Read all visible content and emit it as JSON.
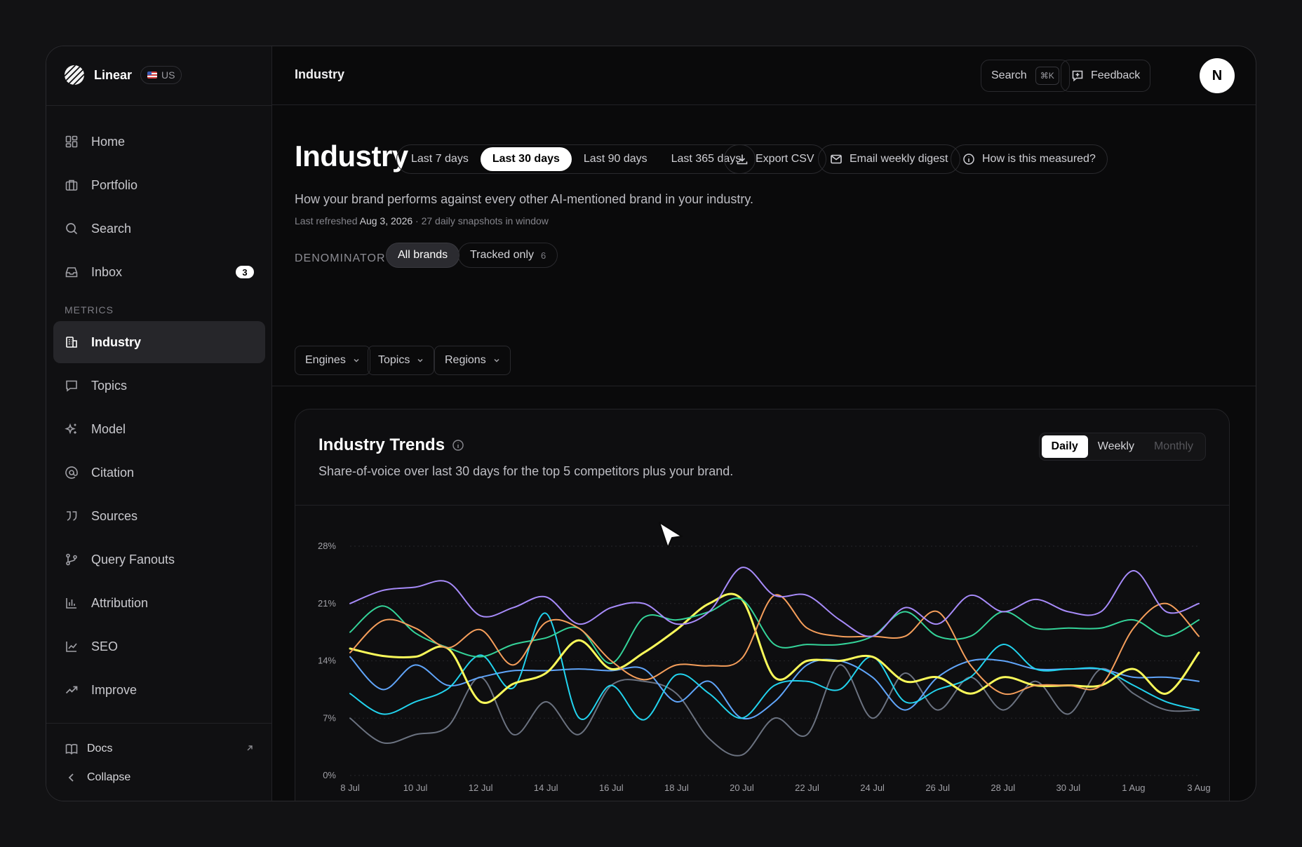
{
  "app": {
    "name": "Linear",
    "region": "US"
  },
  "sidebar": {
    "items": [
      {
        "label": "Home",
        "icon": "home-icon"
      },
      {
        "label": "Portfolio",
        "icon": "briefcase-icon"
      },
      {
        "label": "Search",
        "icon": "search-icon"
      },
      {
        "label": "Inbox",
        "icon": "inbox-icon",
        "badge": "3"
      }
    ],
    "section_label": "METRICS",
    "metrics": [
      {
        "label": "Industry",
        "icon": "building-icon",
        "active": true
      },
      {
        "label": "Topics",
        "icon": "chat-icon"
      },
      {
        "label": "Model",
        "icon": "sparkle-icon"
      },
      {
        "label": "Citation",
        "icon": "at-icon"
      },
      {
        "label": "Sources",
        "icon": "quote-icon"
      },
      {
        "label": "Query Fanouts",
        "icon": "branch-icon"
      },
      {
        "label": "Attribution",
        "icon": "bar-chart-icon"
      },
      {
        "label": "SEO",
        "icon": "line-chart-icon"
      },
      {
        "label": "Improve",
        "icon": "trending-up-icon"
      }
    ],
    "footer": {
      "docs": "Docs",
      "collapse": "Collapse"
    }
  },
  "topbar": {
    "breadcrumb": "Industry",
    "search_label": "Search",
    "search_shortcut": "⌘K",
    "feedback_label": "Feedback",
    "avatar_initial": "N"
  },
  "header": {
    "title": "Industry",
    "ranges": [
      "Last 7 days",
      "Last 30 days",
      "Last 90 days",
      "Last 365 days"
    ],
    "selected_range": "Last 30 days",
    "export_label": "Export CSV",
    "digest_label": "Email weekly digest",
    "measured_label": "How is this measured?",
    "subtitle": "How your brand performs against every other AI-mentioned brand in your industry.",
    "refreshed_prefix": "Last refreshed",
    "refreshed_date": "Aug 3, 2026",
    "snapshots": "· 27 daily snapshots in window"
  },
  "denominator": {
    "label": "DENOMINATOR",
    "all_brands": "All brands",
    "tracked_only": "Tracked only",
    "tracked_count": "6"
  },
  "filters": {
    "engines": "Engines",
    "topics": "Topics",
    "regions": "Regions"
  },
  "card": {
    "title": "Industry Trends",
    "subtitle": "Share-of-voice over last 30 days for the top 5 competitors plus your brand.",
    "granularity": [
      "Daily",
      "Weekly",
      "Monthly"
    ],
    "selected_granularity": "Daily"
  },
  "chart_data": {
    "type": "line",
    "x": [
      "8 Jul",
      "9 Jul",
      "10 Jul",
      "11 Jul",
      "12 Jul",
      "13 Jul",
      "14 Jul",
      "15 Jul",
      "16 Jul",
      "17 Jul",
      "18 Jul",
      "19 Jul",
      "20 Jul",
      "21 Jul",
      "22 Jul",
      "23 Jul",
      "24 Jul",
      "25 Jul",
      "26 Jul",
      "27 Jul",
      "28 Jul",
      "29 Jul",
      "30 Jul",
      "31 Jul",
      "1 Aug",
      "2 Aug",
      "3 Aug"
    ],
    "x_tick_labels": [
      "8 Jul",
      "10 Jul",
      "12 Jul",
      "14 Jul",
      "16 Jul",
      "18 Jul",
      "20 Jul",
      "22 Jul",
      "24 Jul",
      "26 Jul",
      "28 Jul",
      "30 Jul",
      "1 Aug",
      "3 Aug"
    ],
    "y_ticks": [
      "0%",
      "7%",
      "14%",
      "21%",
      "28%"
    ],
    "ylim": [
      0,
      28
    ],
    "grid": true,
    "series": [
      {
        "color": "#a78bfa",
        "values": [
          21,
          22.6,
          23,
          23.6,
          19.5,
          20.5,
          21.8,
          18.5,
          20.5,
          21,
          18.5,
          20,
          25.4,
          22,
          22,
          19,
          17,
          20.5,
          18.5,
          22,
          20,
          21.5,
          20,
          20,
          25,
          20,
          21
        ]
      },
      {
        "color": "#f59e5b",
        "values": [
          15,
          18.9,
          18,
          15.6,
          17.8,
          13.5,
          18.7,
          18,
          14,
          11.7,
          13.5,
          13.4,
          14.3,
          22,
          18,
          17,
          17,
          17,
          20,
          13.5,
          10,
          11,
          11,
          11,
          18,
          21,
          17
        ]
      },
      {
        "color": "#34d399",
        "values": [
          17.5,
          20.7,
          17.4,
          15.6,
          14.5,
          16,
          16.8,
          18,
          13.7,
          19.3,
          19,
          20,
          21.5,
          16,
          16,
          16,
          17,
          20,
          17,
          17,
          20,
          18,
          18,
          18,
          19,
          17,
          19
        ]
      },
      {
        "color": "#fafa5a",
        "values": [
          15.5,
          14.6,
          14.5,
          15.5,
          9,
          11.2,
          12.5,
          16.5,
          13,
          15,
          17.8,
          21,
          21.5,
          12,
          14,
          14,
          14.5,
          11.5,
          12,
          10,
          12,
          11,
          11,
          11,
          13,
          10,
          15
        ]
      },
      {
        "color": "#22d3ee",
        "values": [
          10,
          7.5,
          9,
          10.6,
          14.7,
          10.7,
          19.8,
          7.1,
          11,
          6.8,
          12.3,
          10,
          7,
          11,
          11.5,
          10.5,
          14.5,
          9,
          10.5,
          12,
          16,
          13,
          13,
          13,
          11,
          9,
          8
        ]
      },
      {
        "color": "#60a5fa",
        "values": [
          14.5,
          10.5,
          13.5,
          11,
          12,
          12.8,
          12.8,
          13,
          12.8,
          13,
          9,
          11.5,
          7,
          9,
          13.5,
          14,
          12,
          8,
          12,
          14,
          14,
          13,
          13,
          13,
          12,
          12,
          11.5
        ]
      },
      {
        "color": "#6b7280",
        "values": [
          7,
          4,
          5,
          6,
          12,
          5,
          9,
          5,
          11,
          11.5,
          10,
          4.5,
          2.5,
          7,
          5,
          13.5,
          7,
          12.5,
          8,
          12,
          8,
          11.5,
          7.5,
          13,
          10,
          8,
          8
        ]
      }
    ]
  }
}
